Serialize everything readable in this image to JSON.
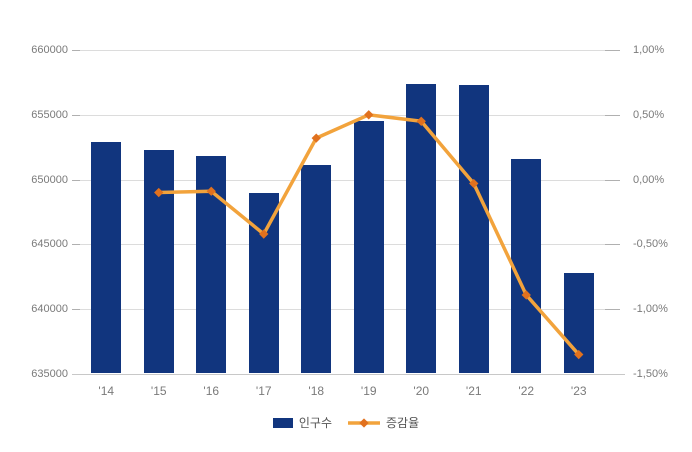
{
  "chart_data": {
    "type": "combo",
    "title": "",
    "categories": [
      "'14",
      "'15",
      "'16",
      "'17",
      "'18",
      "'19",
      "'20",
      "'21",
      "'22",
      "'23"
    ],
    "series": [
      {
        "name": "인구수",
        "type": "bar",
        "yaxis": "left",
        "values": [
          652900,
          652300,
          651800,
          649000,
          651100,
          654500,
          657400,
          657300,
          651600,
          642800
        ]
      },
      {
        "name": "증감율",
        "type": "line",
        "yaxis": "right",
        "values": [
          null,
          -0.1,
          -0.09,
          -0.42,
          0.32,
          0.5,
          0.45,
          -0.03,
          -0.89,
          -1.35
        ]
      }
    ],
    "left_axis": {
      "min": 635000,
      "max": 660000,
      "step": 5000,
      "tick_labels": [
        "660000",
        "655000",
        "650000",
        "645000",
        "640000",
        "635000"
      ]
    },
    "right_axis": {
      "min": -1.5,
      "max": 1.0,
      "step": 0.5,
      "tick_labels": [
        "1,00%",
        "0,50%",
        "0,00%",
        "-0,50%",
        "-1,00%",
        "-1,50%"
      ]
    },
    "legend": {
      "position": "bottom",
      "items": [
        "인구수",
        "증감율"
      ]
    },
    "grid": true
  },
  "colors": {
    "bar": "#11357E",
    "line": "#F2A33C",
    "marker": "#E1711E",
    "gridline": "#DCDCDC",
    "axis_line": "#C8C8C8",
    "tick": "#B0B0B0",
    "axis_label": "#7A7A7A",
    "legend_label": "#555555",
    "background": "#FFFFFF"
  }
}
